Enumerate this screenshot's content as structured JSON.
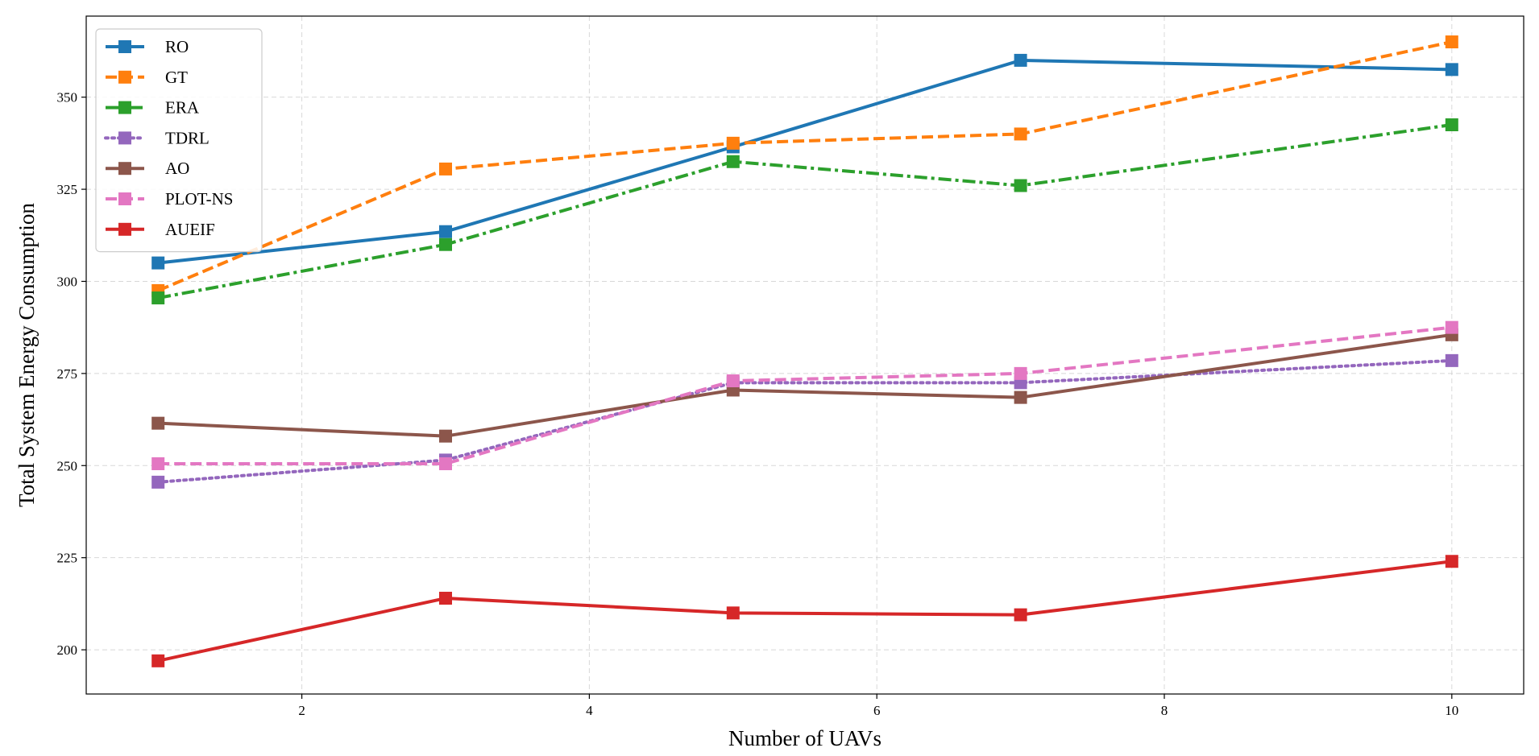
{
  "chart_data": {
    "type": "line",
    "title": "",
    "xlabel": "Number of UAVs",
    "ylabel": "Total System Energy Consumption",
    "x": [
      1,
      3,
      5,
      7,
      10
    ],
    "xlim": [
      0.5,
      10.5
    ],
    "ylim": [
      188,
      372
    ],
    "xticks": [
      2,
      4,
      6,
      8,
      10
    ],
    "yticks": [
      200,
      225,
      250,
      275,
      300,
      325,
      350
    ],
    "grid": true,
    "legend_position": "upper-left",
    "series": [
      {
        "name": "RO",
        "color": "#1f77b4",
        "dash": "solid",
        "values": [
          305,
          313.5,
          336.5,
          360,
          357.5
        ]
      },
      {
        "name": "GT",
        "color": "#ff7f0e",
        "dash": "dashed",
        "values": [
          297.5,
          330.5,
          337.5,
          340,
          365
        ]
      },
      {
        "name": "ERA",
        "color": "#2ca02c",
        "dash": "dashdot",
        "values": [
          295.5,
          310,
          332.5,
          326,
          342.5
        ]
      },
      {
        "name": "TDRL",
        "color": "#9467bd",
        "dash": "dotted",
        "values": [
          245.5,
          251.5,
          272.5,
          272.5,
          278.5
        ]
      },
      {
        "name": "AO",
        "color": "#8c564b",
        "dash": "solid",
        "values": [
          261.5,
          258,
          270.5,
          268.5,
          285.5
        ]
      },
      {
        "name": "PLOT-NS",
        "color": "#e377c2",
        "dash": "dashed",
        "values": [
          250.5,
          250.5,
          273,
          275,
          287.5
        ]
      },
      {
        "name": "AUEIF",
        "color": "#d62728",
        "dash": "solid",
        "values": [
          197,
          214,
          210,
          209.5,
          224
        ]
      }
    ]
  }
}
